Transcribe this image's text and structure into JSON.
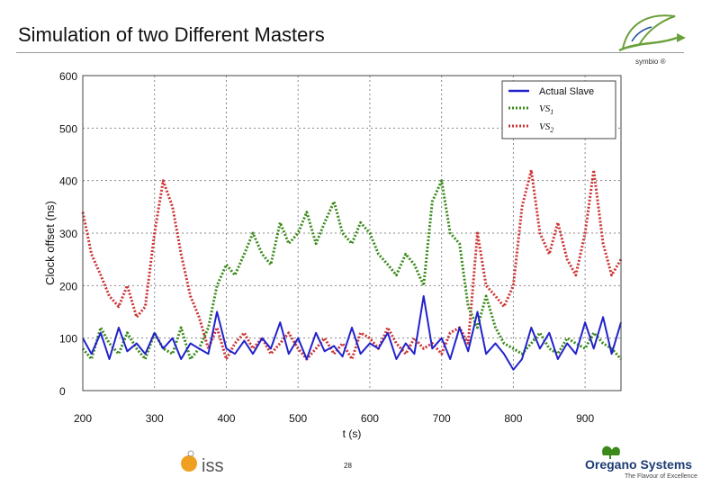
{
  "slide": {
    "title": "Simulation of two Different Masters",
    "logo_text": "symbio ®",
    "page_number": "28",
    "footer_left_logo": "iss",
    "footer_right_logo": "Oregano Systems",
    "footer_right_tagline": "The Flavour of Excellence"
  },
  "chart_data": {
    "type": "line",
    "title": "",
    "xlabel": "t (s)",
    "ylabel": "Clock offset (ns)",
    "xlim": [
      200,
      950
    ],
    "ylim": [
      0,
      600
    ],
    "xticks": [
      200,
      300,
      400,
      500,
      600,
      700,
      800,
      900
    ],
    "yticks": [
      0,
      100,
      200,
      300,
      400,
      500,
      600
    ],
    "grid": true,
    "legend_position": "top-right",
    "x": [
      200,
      212,
      225,
      237,
      250,
      262,
      275,
      287,
      300,
      312,
      325,
      337,
      350,
      362,
      375,
      387,
      400,
      412,
      425,
      437,
      450,
      462,
      475,
      487,
      500,
      512,
      525,
      537,
      550,
      562,
      575,
      587,
      600,
      612,
      625,
      637,
      650,
      662,
      675,
      687,
      700,
      712,
      725,
      737,
      750,
      762,
      775,
      787,
      800,
      812,
      825,
      837,
      850,
      862,
      875,
      887,
      900,
      912,
      925,
      937,
      950
    ],
    "series": [
      {
        "name": "Actual Slave",
        "color": "#2222cc",
        "style": "solid",
        "values": [
          100,
          70,
          110,
          60,
          120,
          75,
          90,
          70,
          110,
          80,
          100,
          60,
          90,
          80,
          70,
          150,
          80,
          70,
          95,
          70,
          100,
          80,
          130,
          70,
          100,
          60,
          110,
          75,
          85,
          65,
          120,
          70,
          90,
          80,
          110,
          60,
          90,
          70,
          180,
          80,
          100,
          60,
          120,
          75,
          150,
          70,
          90,
          70,
          40,
          60,
          120,
          80,
          110,
          60,
          90,
          70,
          130,
          80,
          140,
          70,
          130
        ]
      },
      {
        "name": "VS1",
        "color": "#3a8a1a",
        "style": "dotted",
        "values": [
          80,
          60,
          120,
          90,
          70,
          110,
          80,
          60,
          110,
          80,
          70,
          120,
          60,
          80,
          120,
          200,
          240,
          220,
          260,
          300,
          260,
          240,
          320,
          280,
          300,
          340,
          280,
          320,
          360,
          300,
          280,
          320,
          300,
          260,
          240,
          220,
          260,
          240,
          200,
          360,
          400,
          300,
          280,
          160,
          120,
          180,
          120,
          90,
          80,
          70,
          90,
          110,
          80,
          70,
          100,
          90,
          80,
          110,
          90,
          80,
          60
        ]
      },
      {
        "name": "VS2",
        "color": "#cc3333",
        "style": "dotted",
        "values": [
          340,
          260,
          220,
          180,
          160,
          200,
          140,
          160,
          300,
          400,
          350,
          260,
          180,
          140,
          80,
          120,
          60,
          90,
          110,
          80,
          100,
          70,
          90,
          110,
          80,
          60,
          80,
          100,
          70,
          90,
          60,
          110,
          100,
          80,
          120,
          90,
          70,
          100,
          80,
          90,
          70,
          110,
          120,
          90,
          300,
          200,
          180,
          160,
          200,
          350,
          420,
          300,
          260,
          320,
          250,
          220,
          300,
          420,
          280,
          220,
          250
        ]
      }
    ]
  },
  "legend": {
    "items": [
      {
        "label": "Actual Slave",
        "italic": false
      },
      {
        "label": "VS",
        "sub": "1",
        "italic": true
      },
      {
        "label": "VS",
        "sub": "2",
        "italic": true
      }
    ]
  }
}
